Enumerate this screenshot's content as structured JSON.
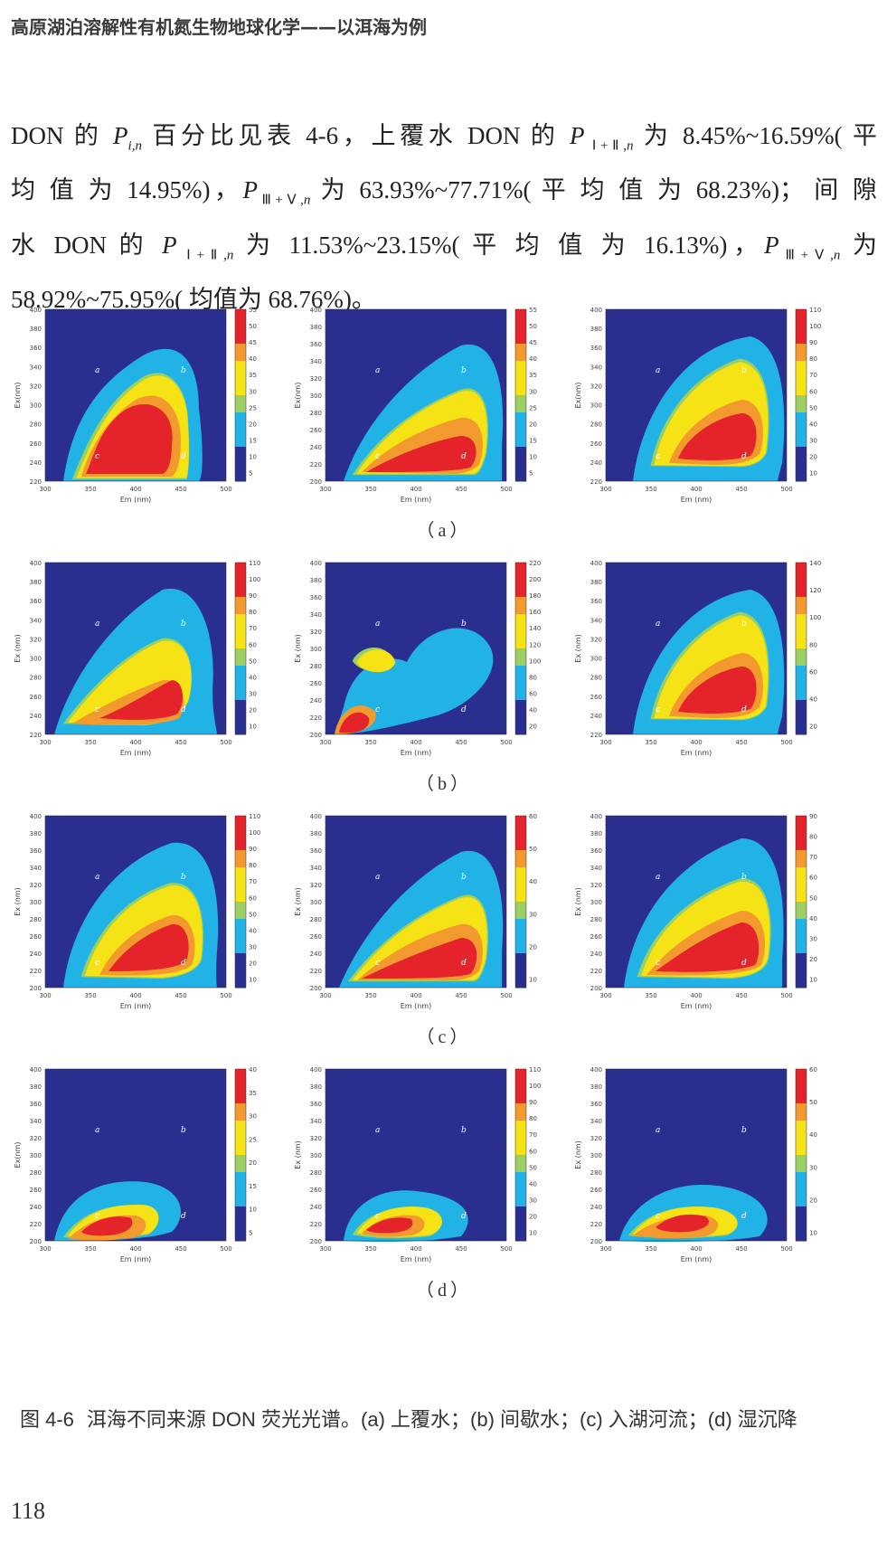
{
  "running_head": "高原湖泊溶解性有机氮生物地球化学——以洱海为例",
  "paragraph_lines": [
    {
      "html": "DON 的 <i>P</i><sub><i>i,n</i></sub> 百分比见表 4-6，上覆水 DON 的 <i>P</i><sub> Ⅰ+Ⅱ,<i>n</i></sub> 为 8.45%~16.59%( 平",
      "justify": true
    },
    {
      "html": "均 值 为 14.95%)，<i>P</i><sub>Ⅲ+Ⅴ,<i>n</i></sub> 为 63.93%~77.71%( 平 均 值 为 68.23%)； 间 隙",
      "justify": true
    },
    {
      "html": "水 DON 的 <i>P</i><sub> Ⅰ+Ⅱ,<i>n</i></sub> 为 11.53%~23.15%( 平 均 值 为 16.13%)，<i>P</i><sub>Ⅲ+Ⅴ,<i>n</i></sub> 为",
      "justify": true
    },
    {
      "html": "58.92%~75.95%( 均值为 68.76%)。",
      "justify": false
    }
  ],
  "figure": {
    "rows": [
      {
        "label": "（a）",
        "panels": [
          {
            "ylabel": "Ex(nm)",
            "xlabel": "Em (nm)",
            "y_ticks": [
              "400",
              "380",
              "360",
              "340",
              "320",
              "300",
              "280",
              "260",
              "240",
              "220"
            ],
            "x_ticks": [
              "300",
              "350",
              "400",
              "450",
              "500"
            ],
            "cbar_ticks": [
              "55",
              "50",
              "45",
              "40",
              "35",
              "30",
              "25",
              "20",
              "15",
              "10",
              "5"
            ],
            "peaks": [
              "a",
              "b",
              "c",
              "d"
            ]
          },
          {
            "ylabel": "Ex(nm)",
            "xlabel": "Em (nm)",
            "y_ticks": [
              "400",
              "380",
              "360",
              "340",
              "320",
              "300",
              "280",
              "260",
              "240",
              "220",
              "200"
            ],
            "x_ticks": [
              "300",
              "350",
              "400",
              "450",
              "500"
            ],
            "cbar_ticks": [
              "55",
              "50",
              "45",
              "40",
              "35",
              "30",
              "25",
              "20",
              "15",
              "10",
              "5"
            ],
            "peaks": [
              "a",
              "b",
              "c",
              "d"
            ]
          },
          {
            "ylabel": "Ex(nm)",
            "xlabel": "Em (nm)",
            "y_ticks": [
              "400",
              "380",
              "360",
              "340",
              "320",
              "300",
              "280",
              "260",
              "240",
              "220"
            ],
            "x_ticks": [
              "300",
              "350",
              "400",
              "450",
              "500"
            ],
            "cbar_ticks": [
              "110",
              "100",
              "90",
              "80",
              "70",
              "60",
              "50",
              "40",
              "30",
              "20",
              "10"
            ],
            "peaks": [
              "a",
              "b",
              "c",
              "d"
            ]
          }
        ]
      },
      {
        "label": "（b）",
        "panels": [
          {
            "ylabel": "Ex (nm)",
            "xlabel": "Em (nm)",
            "y_ticks": [
              "400",
              "380",
              "360",
              "340",
              "320",
              "300",
              "280",
              "260",
              "240",
              "220"
            ],
            "x_ticks": [
              "300",
              "350",
              "400",
              "450",
              "500"
            ],
            "cbar_ticks": [
              "110",
              "100",
              "90",
              "80",
              "70",
              "60",
              "50",
              "40",
              "30",
              "20",
              "10"
            ],
            "peaks": [
              "a",
              "b",
              "c",
              "d"
            ]
          },
          {
            "ylabel": "Ex (nm)",
            "xlabel": "Em (nm)",
            "y_ticks": [
              "400",
              "380",
              "360",
              "340",
              "320",
              "300",
              "280",
              "260",
              "240",
              "220",
              "200"
            ],
            "x_ticks": [
              "300",
              "350",
              "400",
              "450",
              "500"
            ],
            "cbar_ticks": [
              "220",
              "200",
              "180",
              "160",
              "140",
              "120",
              "100",
              "80",
              "60",
              "40",
              "20"
            ],
            "peaks": [
              "a",
              "b",
              "c",
              "d"
            ]
          },
          {
            "ylabel": "Ex (nm)",
            "xlabel": "Em (nm)",
            "y_ticks": [
              "400",
              "380",
              "360",
              "340",
              "320",
              "300",
              "280",
              "260",
              "240",
              "220"
            ],
            "x_ticks": [
              "300",
              "350",
              "400",
              "450",
              "500"
            ],
            "cbar_ticks": [
              "140",
              "120",
              "100",
              "80",
              "60",
              "40",
              "20"
            ],
            "peaks": [
              "a",
              "b",
              "c",
              "d"
            ]
          }
        ]
      },
      {
        "label": "（c）",
        "panels": [
          {
            "ylabel": "Ex (nm)",
            "xlabel": "Em (nm)",
            "y_ticks": [
              "400",
              "380",
              "360",
              "340",
              "320",
              "300",
              "280",
              "260",
              "240",
              "220",
              "200"
            ],
            "x_ticks": [
              "300",
              "350",
              "400",
              "450",
              "500"
            ],
            "cbar_ticks": [
              "110",
              "100",
              "90",
              "80",
              "70",
              "60",
              "50",
              "40",
              "30",
              "20",
              "10"
            ],
            "peaks": [
              "a",
              "b",
              "c",
              "d"
            ]
          },
          {
            "ylabel": "Ex (nm)",
            "xlabel": "Em (nm)",
            "y_ticks": [
              "400",
              "380",
              "360",
              "340",
              "320",
              "300",
              "280",
              "260",
              "240",
              "220",
              "200"
            ],
            "x_ticks": [
              "300",
              "350",
              "400",
              "450",
              "500"
            ],
            "cbar_ticks": [
              "60",
              "50",
              "40",
              "30",
              "20",
              "10"
            ],
            "peaks": [
              "a",
              "b",
              "c",
              "d"
            ]
          },
          {
            "ylabel": "Ex (nm)",
            "xlabel": "Em (nm)",
            "y_ticks": [
              "400",
              "380",
              "360",
              "340",
              "320",
              "300",
              "280",
              "260",
              "240",
              "220",
              "200"
            ],
            "x_ticks": [
              "300",
              "350",
              "400",
              "450",
              "500"
            ],
            "cbar_ticks": [
              "90",
              "80",
              "70",
              "60",
              "50",
              "40",
              "30",
              "20",
              "10"
            ],
            "peaks": [
              "a",
              "b",
              "c",
              "d"
            ]
          }
        ]
      },
      {
        "label": "（d）",
        "panels": [
          {
            "ylabel": "Ex(nm)",
            "xlabel": "Em (nm)",
            "y_ticks": [
              "400",
              "380",
              "360",
              "340",
              "320",
              "300",
              "280",
              "260",
              "240",
              "220",
              "200"
            ],
            "x_ticks": [
              "300",
              "350",
              "400",
              "450",
              "500"
            ],
            "cbar_ticks": [
              "40",
              "35",
              "30",
              "25",
              "20",
              "15",
              "10",
              "5"
            ],
            "peaks": [
              "a",
              "b",
              "c",
              "d"
            ]
          },
          {
            "ylabel": "Ex (nm)",
            "xlabel": "Em (nm)",
            "y_ticks": [
              "400",
              "380",
              "360",
              "340",
              "320",
              "300",
              "280",
              "260",
              "240",
              "220",
              "200"
            ],
            "x_ticks": [
              "300",
              "350",
              "400",
              "450",
              "500"
            ],
            "cbar_ticks": [
              "110",
              "100",
              "90",
              "80",
              "70",
              "60",
              "50",
              "40",
              "30",
              "20",
              "10"
            ],
            "peaks": [
              "a",
              "b",
              "c",
              "d"
            ]
          },
          {
            "ylabel": "Ex (nm)",
            "xlabel": "Em (nm)",
            "y_ticks": [
              "400",
              "380",
              "360",
              "340",
              "320",
              "300",
              "280",
              "260",
              "240",
              "220",
              "200"
            ],
            "x_ticks": [
              "300",
              "350",
              "400",
              "450",
              "500"
            ],
            "cbar_ticks": [
              "60",
              "50",
              "40",
              "30",
              "20",
              "10"
            ],
            "peaks": [
              "a",
              "b",
              "c",
              "d"
            ]
          }
        ]
      }
    ],
    "caption_number": "图 4-6",
    "caption_text": "洱海不同来源 DON 荧光光谱。(a) 上覆水；(b) 间歇水；(c) 入湖河流；(d) 湿沉降"
  },
  "page_number": "118",
  "colors": {
    "navy": "#2a2f8f",
    "light_blue": "#22b3e6",
    "green": "#9ccf63",
    "yellow": "#f5e316",
    "orange": "#f29a2e",
    "red": "#e4232a"
  }
}
